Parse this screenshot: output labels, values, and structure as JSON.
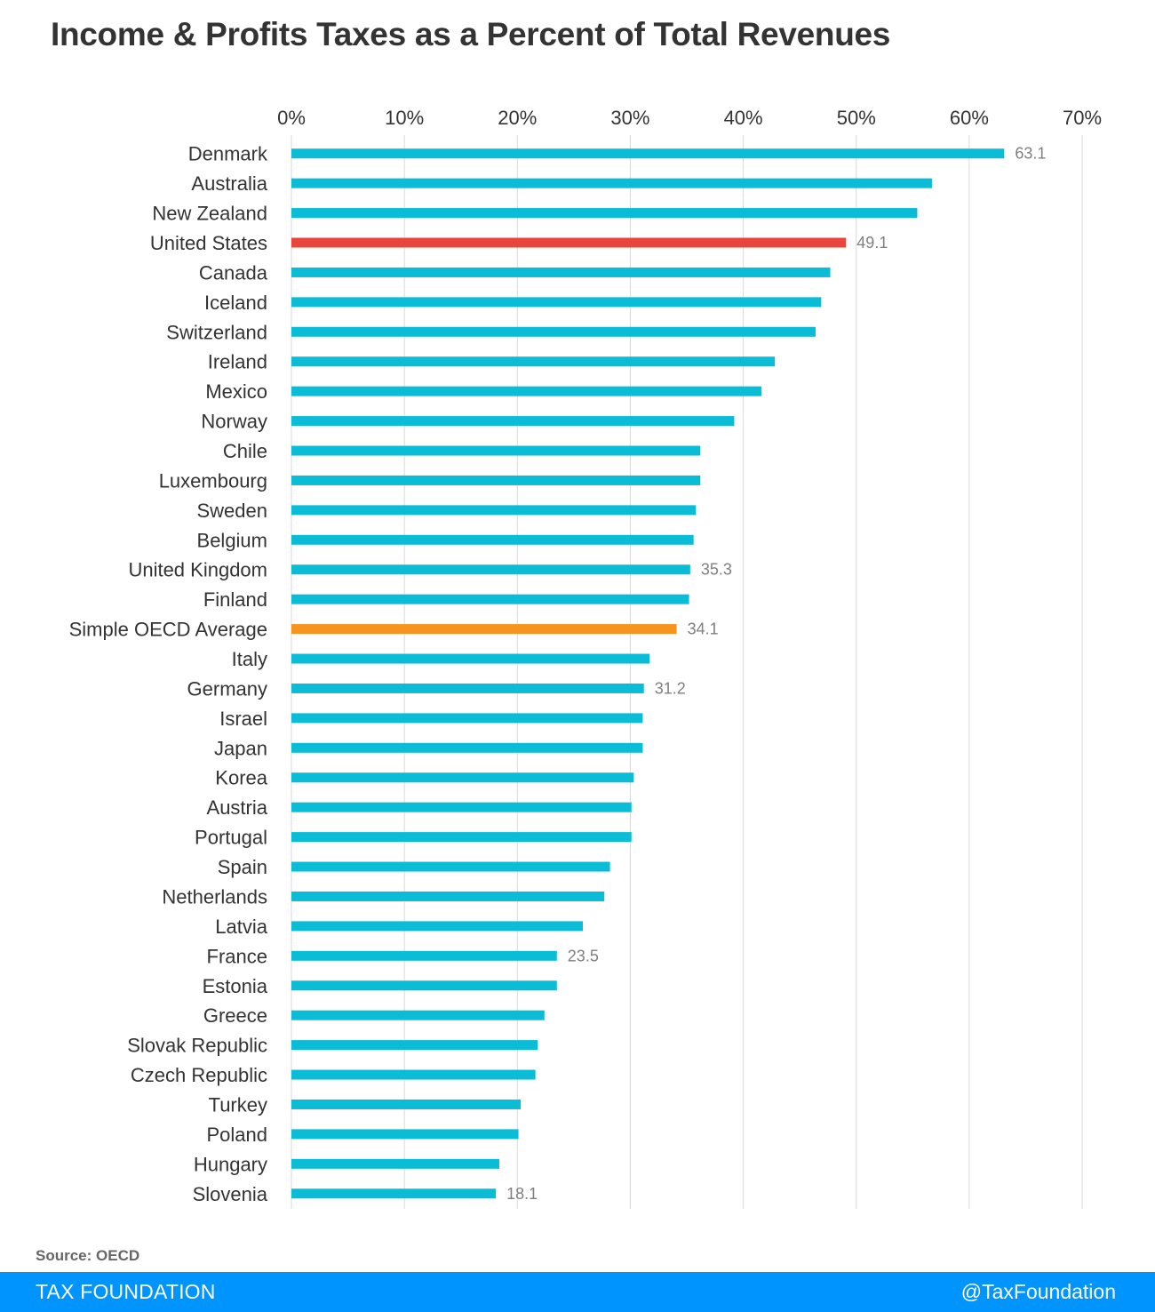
{
  "title": "Income & Profits Taxes as a Percent of Total Revenues",
  "source": "Source: OECD",
  "footer": {
    "brand": "TAX FOUNDATION",
    "handle": "@TaxFoundation"
  },
  "colors": {
    "bar": "#0bbcd6",
    "highlight": "#e8453c",
    "average": "#f7941d",
    "grid": "#d9d9d9",
    "label": "#333333",
    "value_label": "#7f7f7f"
  },
  "chart_data": {
    "type": "bar",
    "orientation": "horizontal",
    "xlim": [
      0,
      70
    ],
    "x_ticks": [
      "0%",
      "10%",
      "20%",
      "30%",
      "40%",
      "50%",
      "60%",
      "70%"
    ],
    "x_tick_values": [
      0,
      10,
      20,
      30,
      40,
      50,
      60,
      70
    ],
    "grid": true,
    "axis_position": "top",
    "categories": [
      "Denmark",
      "Australia",
      "New Zealand",
      "United States",
      "Canada",
      "Iceland",
      "Switzerland",
      "Ireland",
      "Mexico",
      "Norway",
      "Chile",
      "Luxembourg",
      "Sweden",
      "Belgium",
      "United Kingdom",
      "Finland",
      "Simple OECD Average",
      "Italy",
      "Germany",
      "Israel",
      "Japan",
      "Korea",
      "Austria",
      "Portugal",
      "Spain",
      "Netherlands",
      "Latvia",
      "France",
      "Estonia",
      "Greece",
      "Slovak Republic",
      "Czech Republic",
      "Turkey",
      "Poland",
      "Hungary",
      "Slovenia"
    ],
    "values": [
      63.1,
      56.7,
      55.4,
      49.1,
      47.7,
      46.9,
      46.4,
      42.8,
      41.6,
      39.2,
      36.2,
      36.2,
      35.8,
      35.6,
      35.3,
      35.2,
      34.1,
      31.7,
      31.2,
      31.1,
      31.1,
      30.3,
      30.1,
      30.1,
      28.2,
      27.7,
      25.8,
      23.5,
      23.5,
      22.4,
      21.8,
      21.6,
      20.3,
      20.1,
      18.4,
      18.1
    ],
    "data_labels": [
      "63.1",
      "",
      "",
      "49.1",
      "",
      "",
      "",
      "",
      "",
      "",
      "",
      "",
      "",
      "",
      "35.3",
      "",
      "34.1",
      "",
      "31.2",
      "",
      "",
      "",
      "",
      "",
      "",
      "",
      "",
      "23.5",
      "",
      "",
      "",
      "",
      "",
      "",
      "",
      "18.1"
    ],
    "highlight": {
      "United States": "highlight",
      "Simple OECD Average": "average"
    }
  }
}
